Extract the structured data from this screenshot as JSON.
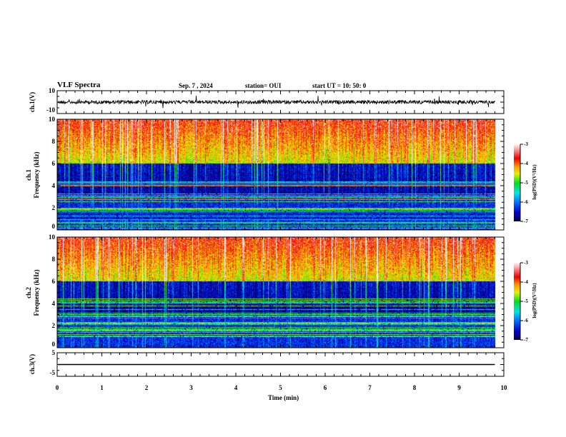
{
  "header": {
    "title": "VLF Spectra",
    "date": "Sep. 7  , 2024",
    "station": "station= OUI",
    "start": "start  UT  =   10: 50: 0"
  },
  "chart_data": {
    "type": "heatmap",
    "xlabel": "Time  (min)",
    "xlim": [
      0,
      10
    ],
    "xticks": [
      "0",
      "1",
      "2",
      "3",
      "4",
      "5",
      "6",
      "7",
      "8",
      "9",
      "10"
    ],
    "data_end_min": 9.8,
    "panels": [
      {
        "name": "ch1-waveform",
        "ylabel": "ch.1(V)",
        "ylim": [
          -10,
          10
        ],
        "yticks": [
          "10",
          "-10"
        ]
      },
      {
        "name": "ch1-spectrogram",
        "ylabel_line1": "ch.1",
        "ylabel_line2": "Frequency  (kHz)",
        "ylim": [
          0,
          10
        ],
        "yticks": [
          "0",
          "2",
          "4",
          "6",
          "8",
          "10"
        ],
        "colorbar": {
          "label": "log(PSD)(V²/Hz)",
          "range": [
            -7,
            -3
          ],
          "ticks": [
            "-3",
            "-4",
            "-5",
            "-6",
            "-7"
          ]
        }
      },
      {
        "name": "ch2-spectrogram",
        "ylabel_line1": "ch.2",
        "ylabel_line2": "Frequency  (kHz)",
        "ylim": [
          0,
          10
        ],
        "yticks": [
          "0",
          "2",
          "4",
          "6",
          "8",
          "10"
        ],
        "colorbar": {
          "label": "log(PSD)(V²/Hz)",
          "range": [
            -7,
            -3
          ],
          "ticks": [
            "-3",
            "-4",
            "-5",
            "-6",
            "-7"
          ]
        }
      },
      {
        "name": "ch3-waveform",
        "ylabel": "ch.3(V)",
        "ylim": [
          -5,
          5
        ],
        "yticks": [
          "5",
          "-5"
        ],
        "constant_value": 0
      }
    ]
  }
}
